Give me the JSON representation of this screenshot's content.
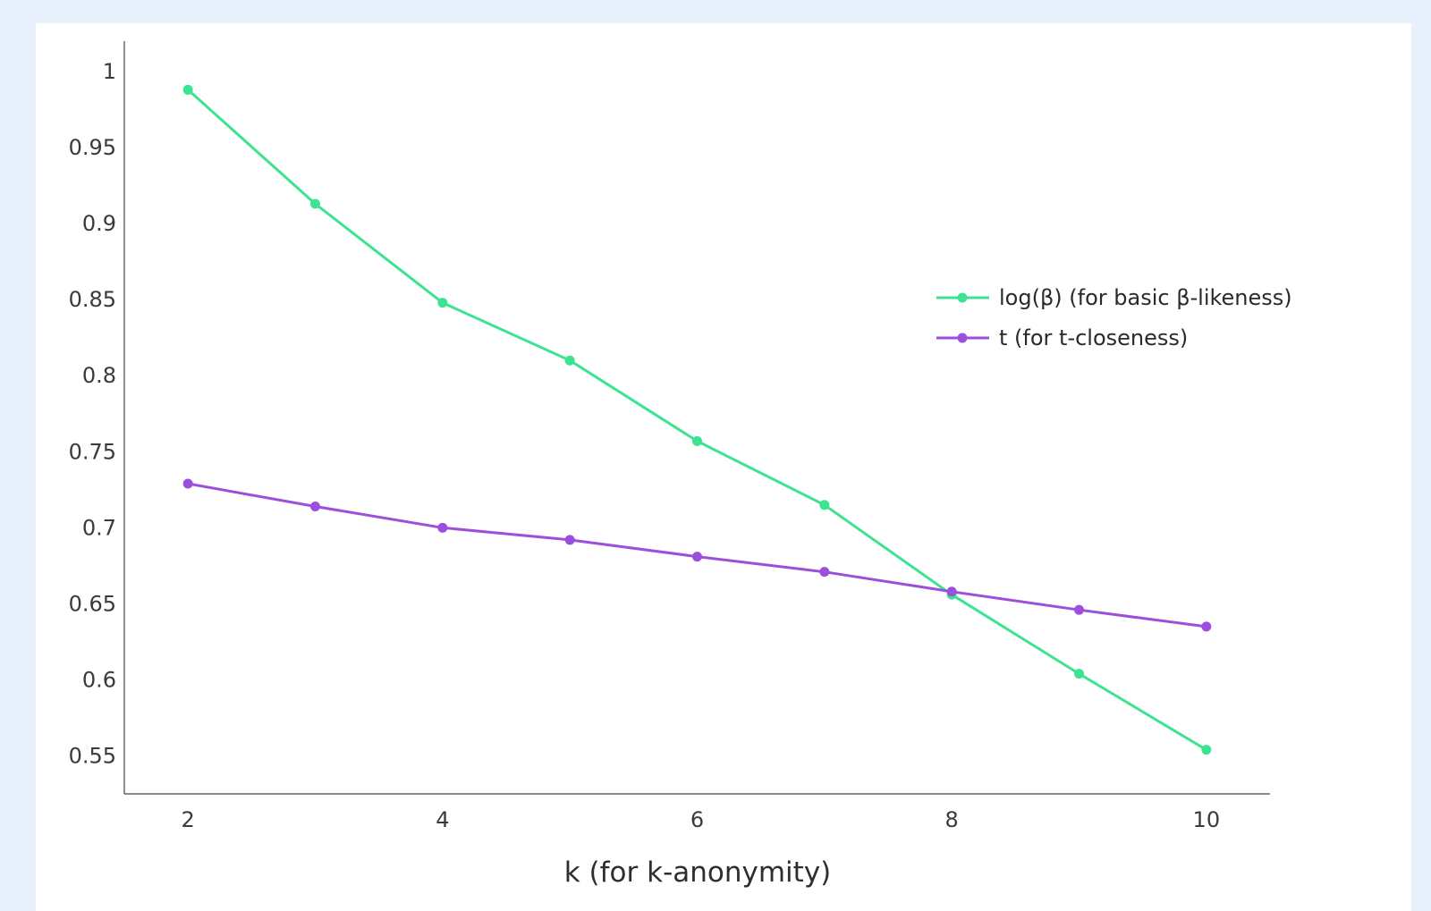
{
  "chart_data": {
    "type": "line",
    "title": "",
    "xlabel": "k (for k-anonymity)",
    "ylabel": "",
    "x": [
      2,
      3,
      4,
      5,
      6,
      7,
      8,
      9,
      10
    ],
    "xlim": [
      1.5,
      10.5
    ],
    "ylim": [
      0.525,
      1.02
    ],
    "xticks": [
      "2",
      "4",
      "6",
      "8",
      "10"
    ],
    "yticks": [
      "0.55",
      "0.6",
      "0.65",
      "0.7",
      "0.75",
      "0.8",
      "0.85",
      "0.9",
      "0.95",
      "1"
    ],
    "grid": false,
    "legend_position": "right",
    "series": [
      {
        "name": "log(β) (for basic β-likeness)",
        "color": "#3ce391",
        "values": [
          0.988,
          0.913,
          0.848,
          0.81,
          0.757,
          0.715,
          0.656,
          0.604,
          0.554
        ]
      },
      {
        "name": "t (for t-closeness)",
        "color": "#9b4fdc",
        "values": [
          0.729,
          0.714,
          0.7,
          0.692,
          0.681,
          0.671,
          0.658,
          0.646,
          0.635
        ]
      }
    ]
  }
}
